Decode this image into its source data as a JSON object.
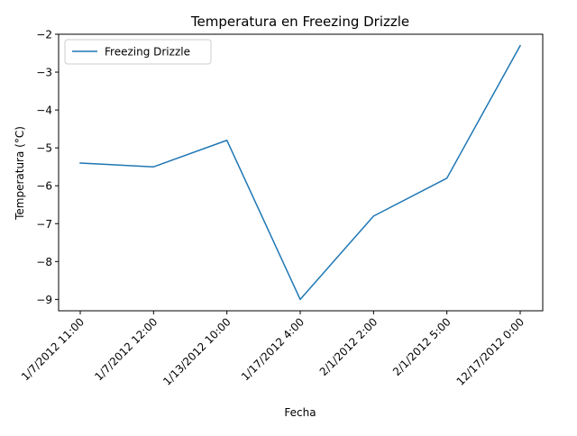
{
  "chart_data": {
    "type": "line",
    "title": "Temperatura en Freezing Drizzle",
    "xlabel": "Fecha",
    "ylabel": "Temperatura (°C)",
    "categories": [
      "1/7/2012 11:00",
      "1/7/2012 12:00",
      "1/13/2012 10:00",
      "1/17/2012 4:00",
      "2/1/2012 2:00",
      "2/1/2012 5:00",
      "12/17/2012 0:00"
    ],
    "series": [
      {
        "name": "Freezing Drizzle",
        "values": [
          -5.4,
          -5.5,
          -4.8,
          -9.0,
          -6.8,
          -5.8,
          -2.3
        ],
        "color": "#1f77b4"
      }
    ],
    "ylim": [
      -9.3,
      -2.0
    ],
    "yticks": [
      -9,
      -8,
      -7,
      -6,
      -5,
      -4,
      -3,
      -2
    ],
    "grid": false,
    "legend_position": "upper-left"
  }
}
